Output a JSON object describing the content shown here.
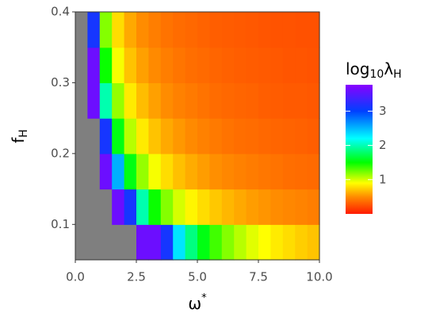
{
  "chart_data": {
    "type": "heatmap",
    "xlabel": {
      "base": "ω",
      "sup": "*"
    },
    "ylabel": {
      "base": "f",
      "sub": "H"
    },
    "legend_title": {
      "base": "log",
      "sub": "10",
      "base2": "λ",
      "sub2": "H"
    },
    "xlim": [
      0,
      10
    ],
    "ylim": [
      0.05,
      0.4
    ],
    "xticks": [
      {
        "value": 0,
        "label": "0.0"
      },
      2.5,
      {
        "value": 5,
        "label": "5.0"
      },
      7.5,
      {
        "value": 10,
        "label": "10.0"
      }
    ],
    "yticks": [
      0.1,
      0.2,
      0.3,
      0.4
    ],
    "x": [
      0.25,
      0.75,
      1.25,
      1.75,
      2.25,
      2.75,
      3.25,
      3.75,
      4.25,
      4.75,
      5.25,
      5.75,
      6.25,
      6.75,
      7.25,
      7.75,
      8.25,
      8.75,
      9.25,
      9.75
    ],
    "y": [
      0.075,
      0.125,
      0.175,
      0.225,
      0.275,
      0.325,
      0.375
    ],
    "z": [
      [
        null,
        null,
        null,
        null,
        null,
        3.6,
        3.6,
        3.12,
        2.31,
        1.85,
        1.55,
        1.35,
        1.19,
        1.07,
        0.97,
        0.9,
        0.83,
        0.78,
        0.73,
        0.69
      ],
      [
        null,
        null,
        null,
        3.6,
        3.12,
        1.98,
        1.48,
        1.19,
        1.0,
        0.87,
        0.78,
        0.71,
        0.65,
        0.6,
        0.56,
        0.53,
        0.5,
        0.48,
        0.46,
        0.44
      ],
      [
        null,
        null,
        3.6,
        2.53,
        1.55,
        1.15,
        0.92,
        0.78,
        0.68,
        0.61,
        0.56,
        0.51,
        0.48,
        0.45,
        0.43,
        0.41,
        0.39,
        0.37,
        0.36,
        0.35
      ],
      [
        null,
        null,
        3.12,
        1.55,
        1.07,
        0.83,
        0.69,
        0.6,
        0.54,
        0.49,
        0.45,
        0.42,
        0.39,
        0.37,
        0.36,
        0.34,
        0.33,
        0.32,
        0.31,
        0.3
      ],
      [
        null,
        3.6,
        1.98,
        1.15,
        0.83,
        0.67,
        0.57,
        0.5,
        0.45,
        0.42,
        0.39,
        0.36,
        0.34,
        0.33,
        0.32,
        0.3,
        0.29,
        0.28,
        0.28,
        0.27
      ],
      [
        null,
        3.6,
        1.48,
        0.92,
        0.69,
        0.57,
        0.49,
        0.44,
        0.4,
        0.37,
        0.35,
        0.33,
        0.31,
        0.3,
        0.29,
        0.28,
        0.27,
        0.26,
        0.26,
        0.25
      ],
      [
        null,
        3.12,
        1.19,
        0.78,
        0.6,
        0.5,
        0.44,
        0.39,
        0.36,
        0.34,
        0.32,
        0.3,
        0.29,
        0.28,
        0.27,
        0.26,
        0.25,
        0.25,
        0.24,
        0.24
      ]
    ],
    "missing_color": "#7f7f7f",
    "colorscale": [
      [
        0,
        "#ff1a00"
      ],
      [
        0.5,
        "#ff8c00"
      ],
      [
        0.9,
        "#ffff00"
      ],
      [
        1.5,
        "#00ff00"
      ],
      [
        2.2,
        "#00ffff"
      ],
      [
        3,
        "#0040ff"
      ],
      [
        3.77,
        "#8a00ff"
      ]
    ],
    "colorbar_lim": [
      0,
      3.77
    ],
    "colorbar_ticks": [
      1,
      2,
      3
    ]
  }
}
